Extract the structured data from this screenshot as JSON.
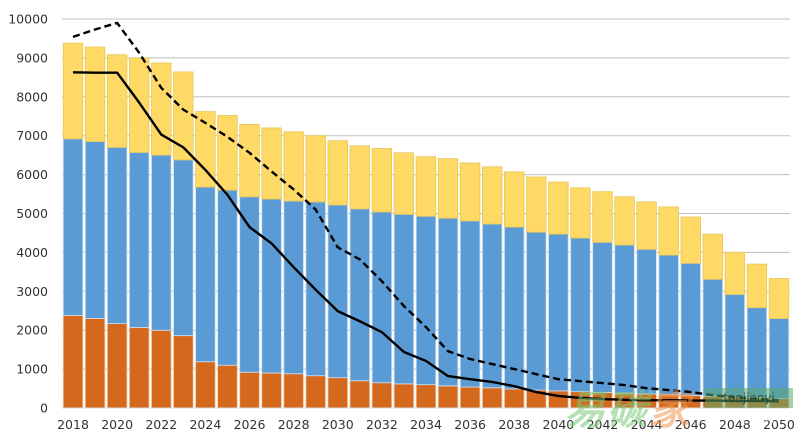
{
  "chart_data": {
    "type": "bar",
    "subtype": "stacked-bar-with-lines",
    "title": "",
    "xlabel": "",
    "ylabel": "",
    "ylim": [
      0,
      10000
    ],
    "yticks": [
      0,
      1000,
      2000,
      3000,
      4000,
      5000,
      6000,
      7000,
      8000,
      9000,
      10000
    ],
    "ytick_labels": [
      "0",
      "1000",
      "2000",
      "3000",
      "4000",
      "5000",
      "6000",
      "7000",
      "8000",
      "9000",
      "10000"
    ],
    "grid": true,
    "legend": "none",
    "categories": [
      2018,
      2019,
      2020,
      2021,
      2022,
      2023,
      2024,
      2025,
      2026,
      2027,
      2028,
      2029,
      2030,
      2031,
      2032,
      2033,
      2034,
      2035,
      2036,
      2037,
      2038,
      2039,
      2040,
      2041,
      2042,
      2043,
      2044,
      2045,
      2046,
      2047,
      2048,
      2049,
      2050
    ],
    "xtick_labels": [
      "2018",
      "2020",
      "2022",
      "2024",
      "2026",
      "2028",
      "2030",
      "2032",
      "2034",
      "2036",
      "2038",
      "2040",
      "2042",
      "2044",
      "2046",
      "2048",
      "2050"
    ],
    "series": [
      {
        "name": "orange (bottom stack)",
        "kind": "bar",
        "color": "#d4691e",
        "values": [
          2380,
          2300,
          2170,
          2070,
          2000,
          1860,
          1190,
          1100,
          920,
          900,
          880,
          830,
          780,
          700,
          650,
          620,
          600,
          570,
          540,
          520,
          490,
          460,
          440,
          420,
          400,
          380,
          360,
          340,
          320,
          300,
          280,
          260,
          240
        ]
      },
      {
        "name": "blue (middle stack)",
        "kind": "bar",
        "color": "#5b9bd5",
        "values": [
          4540,
          4550,
          4530,
          4500,
          4500,
          4520,
          4490,
          4500,
          4510,
          4470,
          4440,
          4470,
          4440,
          4420,
          4390,
          4360,
          4330,
          4310,
          4270,
          4210,
          4160,
          4060,
          4030,
          3950,
          3860,
          3810,
          3720,
          3590,
          3400,
          3010,
          2640,
          2320,
          2060
        ]
      },
      {
        "name": "yellow (top stack)",
        "kind": "bar",
        "color": "#ffd966",
        "values": [
          2460,
          2430,
          2380,
          2430,
          2370,
          2260,
          1940,
          1920,
          1860,
          1830,
          1780,
          1700,
          1650,
          1620,
          1630,
          1580,
          1530,
          1530,
          1490,
          1470,
          1420,
          1420,
          1340,
          1290,
          1300,
          1240,
          1220,
          1240,
          1190,
          1160,
          1080,
          1120,
          1030
        ]
      },
      {
        "name": "solid line",
        "kind": "line",
        "color": "#000000",
        "style": "solid",
        "values": [
          8630,
          8620,
          8620,
          7850,
          7030,
          6700,
          6120,
          5480,
          4650,
          4230,
          3620,
          3040,
          2490,
          2230,
          1950,
          1440,
          1210,
          820,
          740,
          670,
          560,
          410,
          310,
          260,
          230,
          210,
          200,
          200,
          190,
          190,
          180,
          180,
          170
        ]
      },
      {
        "name": "dashed line",
        "kind": "line",
        "color": "#000000",
        "style": "dashed",
        "values": [
          9540,
          9730,
          9900,
          9130,
          8230,
          7670,
          7330,
          6970,
          6560,
          6080,
          5620,
          5100,
          4130,
          3820,
          3260,
          2620,
          2080,
          1460,
          1260,
          1130,
          1000,
          870,
          740,
          690,
          640,
          590,
          510,
          460,
          410,
          330,
          280,
          230,
          200
        ]
      }
    ]
  },
  "watermark": {
    "chinese": "易碳家",
    "chinese_parts": [
      "易",
      "碳",
      "家"
    ],
    "latin": "tanjiaoyi",
    "domain_suffix": ".com"
  }
}
